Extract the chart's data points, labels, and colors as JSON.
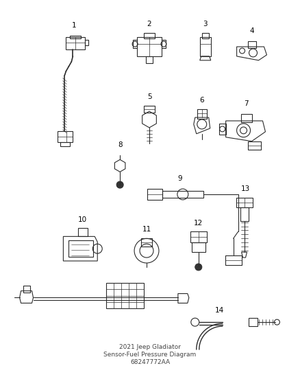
{
  "background_color": "#ffffff",
  "line_color": "#2a2a2a",
  "title_lines": [
    "2021 Jeep Gladiator",
    "Sensor-Fuel Pressure Diagram",
    "68247772AA"
  ],
  "figsize": [
    4.38,
    5.33
  ],
  "dpi": 100
}
